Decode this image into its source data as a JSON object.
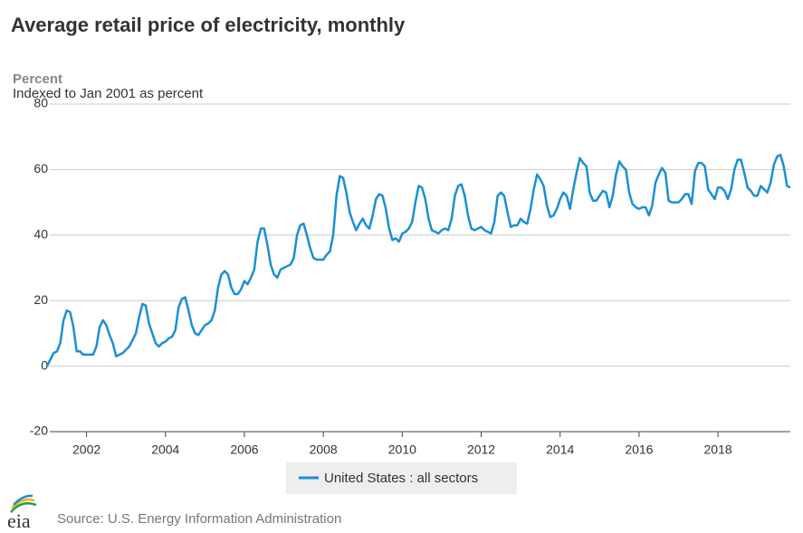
{
  "chart_data": {
    "type": "line",
    "title": "Average retail price of electricity, monthly",
    "y_label": "Percent",
    "subtitle": "Indexed to Jan 2001 as percent",
    "source": "Source: U.S. Energy Information Administration",
    "logo": "eia",
    "x": [
      "2001-01",
      "2001-02",
      "2001-03",
      "2001-04",
      "2001-05",
      "2001-06",
      "2001-07",
      "2001-08",
      "2001-09",
      "2001-10",
      "2001-11",
      "2001-12",
      "2002-01",
      "2002-02",
      "2002-03",
      "2002-04",
      "2002-05",
      "2002-06",
      "2002-07",
      "2002-08",
      "2002-09",
      "2002-10",
      "2002-11",
      "2002-12",
      "2003-01",
      "2003-02",
      "2003-03",
      "2003-04",
      "2003-05",
      "2003-06",
      "2003-07",
      "2003-08",
      "2003-09",
      "2003-10",
      "2003-11",
      "2003-12",
      "2004-01",
      "2004-02",
      "2004-03",
      "2004-04",
      "2004-05",
      "2004-06",
      "2004-07",
      "2004-08",
      "2004-09",
      "2004-10",
      "2004-11",
      "2004-12",
      "2005-01",
      "2005-02",
      "2005-03",
      "2005-04",
      "2005-05",
      "2005-06",
      "2005-07",
      "2005-08",
      "2005-09",
      "2005-10",
      "2005-11",
      "2005-12",
      "2006-01",
      "2006-02",
      "2006-03",
      "2006-04",
      "2006-05",
      "2006-06",
      "2006-07",
      "2006-08",
      "2006-09",
      "2006-10",
      "2006-11",
      "2006-12",
      "2007-01",
      "2007-02",
      "2007-03",
      "2007-04",
      "2007-05",
      "2007-06",
      "2007-07",
      "2007-08",
      "2007-09",
      "2007-10",
      "2007-11",
      "2007-12",
      "2008-01",
      "2008-02",
      "2008-03",
      "2008-04",
      "2008-05",
      "2008-06",
      "2008-07",
      "2008-08",
      "2008-09",
      "2008-10",
      "2008-11",
      "2008-12",
      "2009-01",
      "2009-02",
      "2009-03",
      "2009-04",
      "2009-05",
      "2009-06",
      "2009-07",
      "2009-08",
      "2009-09",
      "2009-10",
      "2009-11",
      "2009-12",
      "2010-01",
      "2010-02",
      "2010-03",
      "2010-04",
      "2010-05",
      "2010-06",
      "2010-07",
      "2010-08",
      "2010-09",
      "2010-10",
      "2010-11",
      "2010-12",
      "2011-01",
      "2011-02",
      "2011-03",
      "2011-04",
      "2011-05",
      "2011-06",
      "2011-07",
      "2011-08",
      "2011-09",
      "2011-10",
      "2011-11",
      "2011-12",
      "2012-01",
      "2012-02",
      "2012-03",
      "2012-04",
      "2012-05",
      "2012-06",
      "2012-07",
      "2012-08",
      "2012-09",
      "2012-10",
      "2012-11",
      "2012-12",
      "2013-01",
      "2013-02",
      "2013-03",
      "2013-04",
      "2013-05",
      "2013-06",
      "2013-07",
      "2013-08",
      "2013-09",
      "2013-10",
      "2013-11",
      "2013-12",
      "2014-01",
      "2014-02",
      "2014-03",
      "2014-04",
      "2014-05",
      "2014-06",
      "2014-07",
      "2014-08",
      "2014-09",
      "2014-10",
      "2014-11",
      "2014-12",
      "2015-01",
      "2015-02",
      "2015-03",
      "2015-04",
      "2015-05",
      "2015-06",
      "2015-07",
      "2015-08",
      "2015-09",
      "2015-10",
      "2015-11",
      "2015-12",
      "2016-01",
      "2016-02",
      "2016-03",
      "2016-04",
      "2016-05",
      "2016-06",
      "2016-07",
      "2016-08",
      "2016-09",
      "2016-10",
      "2016-11",
      "2016-12",
      "2017-01",
      "2017-02",
      "2017-03",
      "2017-04",
      "2017-05",
      "2017-06",
      "2017-07",
      "2017-08",
      "2017-09",
      "2017-10",
      "2017-11",
      "2017-12",
      "2018-01",
      "2018-02",
      "2018-03",
      "2018-04",
      "2018-05",
      "2018-06",
      "2018-07",
      "2018-08",
      "2018-09",
      "2018-10",
      "2018-11",
      "2018-12",
      "2019-01",
      "2019-02",
      "2019-03",
      "2019-04",
      "2019-05",
      "2019-06",
      "2019-07",
      "2019-08",
      "2019-09",
      "2019-10",
      "2019-11"
    ],
    "series": [
      {
        "name": "United States : all sectors",
        "color": "#1a8fd4",
        "values": [
          0,
          2,
          4,
          4.5,
          7,
          14,
          17,
          16.5,
          12,
          4.5,
          4.5,
          3.5,
          3.5,
          3.5,
          3.5,
          6,
          12,
          14,
          12.5,
          9.5,
          7,
          3,
          3.5,
          4,
          5,
          6,
          8,
          10,
          15,
          19,
          18.5,
          13,
          10,
          7,
          6,
          7,
          7.5,
          8.5,
          9,
          11,
          18,
          20.5,
          21,
          17,
          12.5,
          10,
          9.5,
          11,
          12.5,
          13,
          14,
          17,
          24,
          28,
          29,
          28,
          24,
          22,
          22,
          23.5,
          26,
          25,
          27,
          29.5,
          38,
          42,
          42,
          37,
          31,
          28,
          27,
          29.5,
          30,
          30.5,
          31,
          33,
          40,
          43,
          43.5,
          40,
          36,
          33,
          32.5,
          32.5,
          32.5,
          34,
          35,
          40,
          52,
          58,
          57.5,
          53,
          47,
          44,
          41.5,
          43.5,
          45,
          43,
          42,
          46,
          51,
          52.5,
          52,
          48,
          42,
          38.5,
          39,
          38,
          40.5,
          41,
          42,
          44,
          50,
          55,
          54.5,
          51,
          45,
          41.5,
          41,
          40.5,
          41.5,
          42,
          41.5,
          45,
          52,
          55,
          55.5,
          52,
          46,
          42,
          41.5,
          42,
          42.5,
          41.5,
          41,
          40.5,
          44,
          52,
          53,
          52,
          47,
          42.5,
          43,
          43,
          45,
          44,
          43.5,
          48,
          54,
          58.5,
          57,
          55,
          49,
          45.5,
          46,
          48,
          51,
          53,
          52,
          48,
          54,
          59,
          63.5,
          62,
          61,
          53,
          50.5,
          50.5,
          52,
          53.5,
          53,
          48.5,
          52,
          58.5,
          62.5,
          61,
          60,
          53,
          49.5,
          48.5,
          48,
          48.5,
          48.5,
          46,
          49,
          56,
          58.5,
          60.5,
          59,
          50.5,
          50,
          50,
          50,
          51,
          52.5,
          52.5,
          49.5,
          59.5,
          62,
          62,
          61,
          54,
          52.5,
          51,
          54.5,
          54.5,
          53.5,
          51,
          54,
          60,
          63,
          63,
          59,
          54.5,
          53.5,
          52,
          52,
          55,
          54,
          53,
          56,
          61.5,
          64,
          64.5,
          61,
          55,
          54.5
        ]
      }
    ],
    "xlim": [
      "2001-01",
      "2019-11"
    ],
    "xticks": [
      2002,
      2004,
      2006,
      2008,
      2010,
      2012,
      2014,
      2016,
      2018
    ],
    "ylim": [
      -20,
      80
    ],
    "yticks": [
      -20,
      0,
      20,
      40,
      60,
      80
    ],
    "grid": true
  }
}
